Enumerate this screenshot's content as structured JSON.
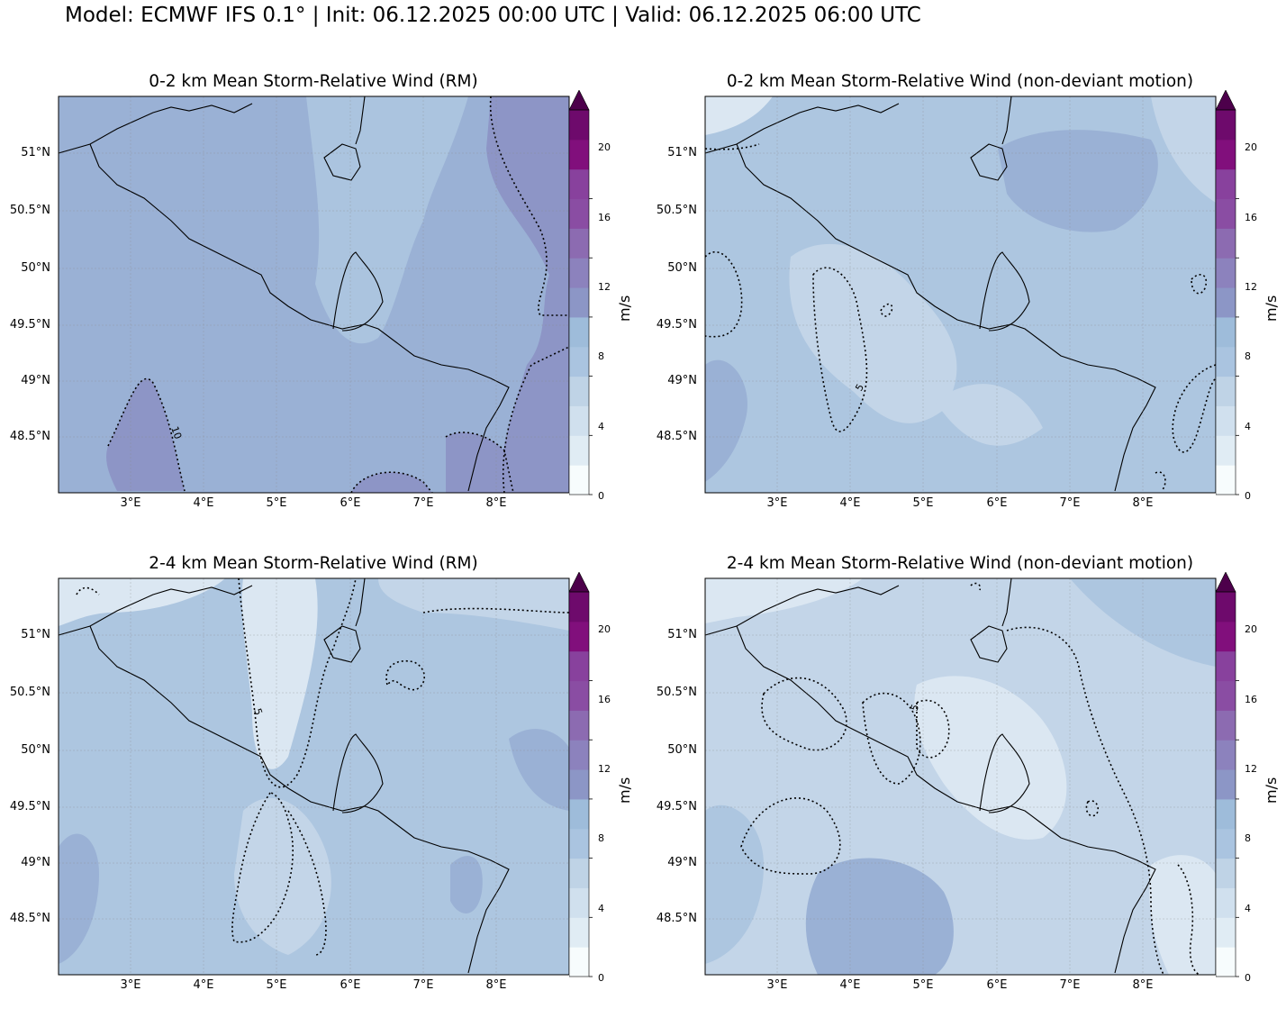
{
  "header": {
    "title": "Model: ECMWF IFS 0.1° | Init: 06.12.2025 00:00 UTC | Valid: 06.12.2025 06:00 UTC"
  },
  "axes": {
    "lat_labels": [
      "51°N",
      "50.5°N",
      "50°N",
      "49.5°N",
      "49°N",
      "48.5°N"
    ],
    "lon_labels": [
      "3°E",
      "4°E",
      "5°E",
      "6°E",
      "7°E",
      "8°E"
    ]
  },
  "colorbar": {
    "unit": "m/s",
    "ticks": [
      "0",
      "4",
      "8",
      "12",
      "16",
      "20"
    ],
    "colors": [
      "#f7fcfd",
      "#e0ecf4",
      "#d0e0ee",
      "#bfd3e6",
      "#aac4e0",
      "#9ebcda",
      "#8c96c6",
      "#8c82bd",
      "#8c6bb1",
      "#8a4da3",
      "#88419d",
      "#810f7c",
      "#6e0a6c",
      "#4d004b"
    ]
  },
  "panels": [
    {
      "title": "0-2 km Mean Storm-Relative Wind (RM)",
      "contour_label": "10"
    },
    {
      "title": "0-2 km Mean Storm-Relative Wind (non-deviant motion)",
      "contour_label": "5"
    },
    {
      "title": "2-4 km Mean Storm-Relative Wind (RM)",
      "contour_label": "5"
    },
    {
      "title": "2-4 km Mean Storm-Relative Wind (non-deviant motion)",
      "contour_label": "5"
    }
  ]
}
